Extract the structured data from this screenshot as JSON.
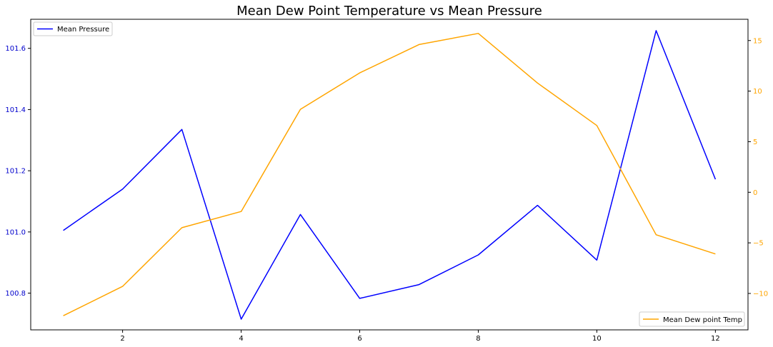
{
  "chart_data": {
    "type": "line",
    "title": "Mean Dew Point Temperature vs Mean Pressure",
    "x": [
      1,
      2,
      3,
      4,
      5,
      6,
      7,
      8,
      9,
      10,
      11,
      12
    ],
    "xticks": [
      2,
      4,
      6,
      8,
      10,
      12
    ],
    "xlim": [
      0.45,
      12.55
    ],
    "series": [
      {
        "name": "Mean Pressure",
        "axis": "left",
        "color": "#0000ff",
        "values": [
          101.005,
          101.14,
          101.335,
          100.715,
          101.057,
          100.783,
          100.828,
          100.925,
          101.087,
          100.908,
          101.658,
          101.172
        ]
      },
      {
        "name": "Mean Dew point Temp",
        "axis": "right",
        "color": "#ffa500",
        "values": [
          -12.2,
          -9.3,
          -3.5,
          -1.9,
          8.2,
          11.8,
          14.6,
          15.7,
          10.8,
          6.6,
          -4.2,
          -6.1
        ]
      }
    ],
    "y_left": {
      "ticks": [
        100.8,
        101.0,
        101.2,
        101.4,
        101.6
      ],
      "tick_labels": [
        "100.8",
        "101.0",
        "101.2",
        "101.4",
        "101.6"
      ],
      "ylim": [
        100.68,
        101.695
      ],
      "color": "#0000cd"
    },
    "y_right": {
      "ticks": [
        -10,
        -5,
        0,
        5,
        10,
        15
      ],
      "tick_labels": [
        "−10",
        "−5",
        "0",
        "5",
        "10",
        "15"
      ],
      "ylim": [
        -13.6,
        17.1
      ],
      "color": "#ffa500"
    },
    "legend_left": {
      "label": "Mean Pressure",
      "placement": "upper-left"
    },
    "legend_right": {
      "label": "Mean Dew point Temp",
      "placement": "lower-right"
    },
    "grid": false
  }
}
